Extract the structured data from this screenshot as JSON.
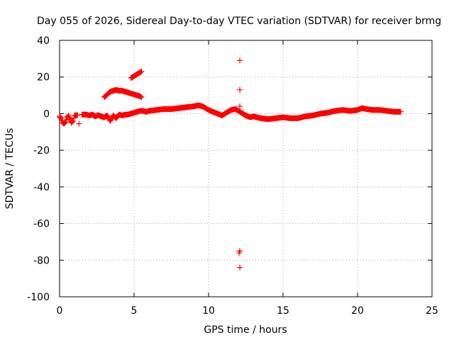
{
  "chart_data": {
    "type": "scatter",
    "title": "Day 055 of 2026, Sidereal Day-to-day VTEC variation (SDTVAR) for receiver brmg",
    "xlabel": "GPS time / hours",
    "ylabel": "SDTVAR / TECUs",
    "xlim": [
      0,
      25
    ],
    "ylim": [
      -100,
      40
    ],
    "xticks": [
      0,
      5,
      10,
      15,
      20,
      25
    ],
    "yticks": [
      -100,
      -80,
      -60,
      -40,
      -20,
      0,
      20,
      40
    ],
    "grid": true,
    "marker": "plus",
    "series_color": "#ff0000",
    "series": [
      {
        "name": "SDTVAR",
        "points": [
          [
            0.0,
            -1.5
          ],
          [
            0.1,
            -2.5
          ],
          [
            0.2,
            -5.0
          ],
          [
            0.3,
            -5.5
          ],
          [
            0.4,
            -4.5
          ],
          [
            0.5,
            -2.0
          ],
          [
            0.6,
            -1.0
          ],
          [
            0.7,
            -3.0
          ],
          [
            0.8,
            -5.0
          ],
          [
            0.9,
            -4.0
          ],
          [
            1.0,
            -1.0
          ],
          [
            1.2,
            -0.8
          ],
          [
            1.3,
            -5.5
          ],
          [
            1.5,
            -0.5
          ],
          [
            1.8,
            -0.5
          ],
          [
            2.0,
            -1.0
          ],
          [
            2.2,
            -0.5
          ],
          [
            2.4,
            -1.5
          ],
          [
            2.6,
            -0.8
          ],
          [
            2.8,
            -1.5
          ],
          [
            3.0,
            -2.0
          ],
          [
            3.2,
            -1.0
          ],
          [
            3.4,
            -4.0
          ],
          [
            3.6,
            -1.0
          ],
          [
            3.8,
            -2.5
          ],
          [
            4.0,
            -0.5
          ],
          [
            4.2,
            -1.0
          ],
          [
            4.4,
            -0.5
          ],
          [
            4.6,
            -0.5
          ],
          [
            4.8,
            0.0
          ],
          [
            5.0,
            0.5
          ],
          [
            5.2,
            1.0
          ],
          [
            5.4,
            1.5
          ],
          [
            5.6,
            1.5
          ],
          [
            5.8,
            1.0
          ],
          [
            6.0,
            1.5
          ],
          [
            6.5,
            2.0
          ],
          [
            7.0,
            2.5
          ],
          [
            7.5,
            2.5
          ],
          [
            8.0,
            3.0
          ],
          [
            8.5,
            3.5
          ],
          [
            9.0,
            4.0
          ],
          [
            9.3,
            4.5
          ],
          [
            9.6,
            4.0
          ],
          [
            10.0,
            2.0
          ],
          [
            10.3,
            1.0
          ],
          [
            10.6,
            0.0
          ],
          [
            10.9,
            -1.0
          ],
          [
            11.2,
            0.5
          ],
          [
            11.5,
            2.0
          ],
          [
            11.8,
            2.5
          ],
          [
            12.0,
            1.5
          ],
          [
            12.2,
            0.5
          ],
          [
            12.5,
            -1.0
          ],
          [
            12.8,
            -2.0
          ],
          [
            13.0,
            -1.5
          ],
          [
            13.5,
            -2.5
          ],
          [
            14.0,
            -3.0
          ],
          [
            14.5,
            -2.5
          ],
          [
            15.0,
            -2.0
          ],
          [
            15.5,
            -2.5
          ],
          [
            16.0,
            -2.5
          ],
          [
            16.5,
            -1.5
          ],
          [
            17.0,
            -1.0
          ],
          [
            17.5,
            0.0
          ],
          [
            18.0,
            0.5
          ],
          [
            18.5,
            1.5
          ],
          [
            19.0,
            2.0
          ],
          [
            19.5,
            1.5
          ],
          [
            20.0,
            2.0
          ],
          [
            20.3,
            3.0
          ],
          [
            20.6,
            2.5
          ],
          [
            21.0,
            2.0
          ],
          [
            21.5,
            2.0
          ],
          [
            22.0,
            1.5
          ],
          [
            22.5,
            1.0
          ],
          [
            22.9,
            1.0
          ],
          [
            3.0,
            9.0
          ],
          [
            3.2,
            10.5
          ],
          [
            3.4,
            12.0
          ],
          [
            3.6,
            12.5
          ],
          [
            3.8,
            13.0
          ],
          [
            4.0,
            12.5
          ],
          [
            4.2,
            12.5
          ],
          [
            4.4,
            12.0
          ],
          [
            4.6,
            11.5
          ],
          [
            4.8,
            11.0
          ],
          [
            5.0,
            10.5
          ],
          [
            5.2,
            10.0
          ],
          [
            5.4,
            9.5
          ],
          [
            5.5,
            9.0
          ],
          [
            4.8,
            19.5
          ],
          [
            5.0,
            20.5
          ],
          [
            5.2,
            21.5
          ],
          [
            5.4,
            22.5
          ],
          [
            5.5,
            23.0
          ],
          [
            12.1,
            29.0
          ],
          [
            12.1,
            13.0
          ],
          [
            12.1,
            4.0
          ],
          [
            12.1,
            -75.0
          ],
          [
            12.05,
            -76.0
          ],
          [
            12.1,
            -84.0
          ]
        ]
      }
    ]
  }
}
